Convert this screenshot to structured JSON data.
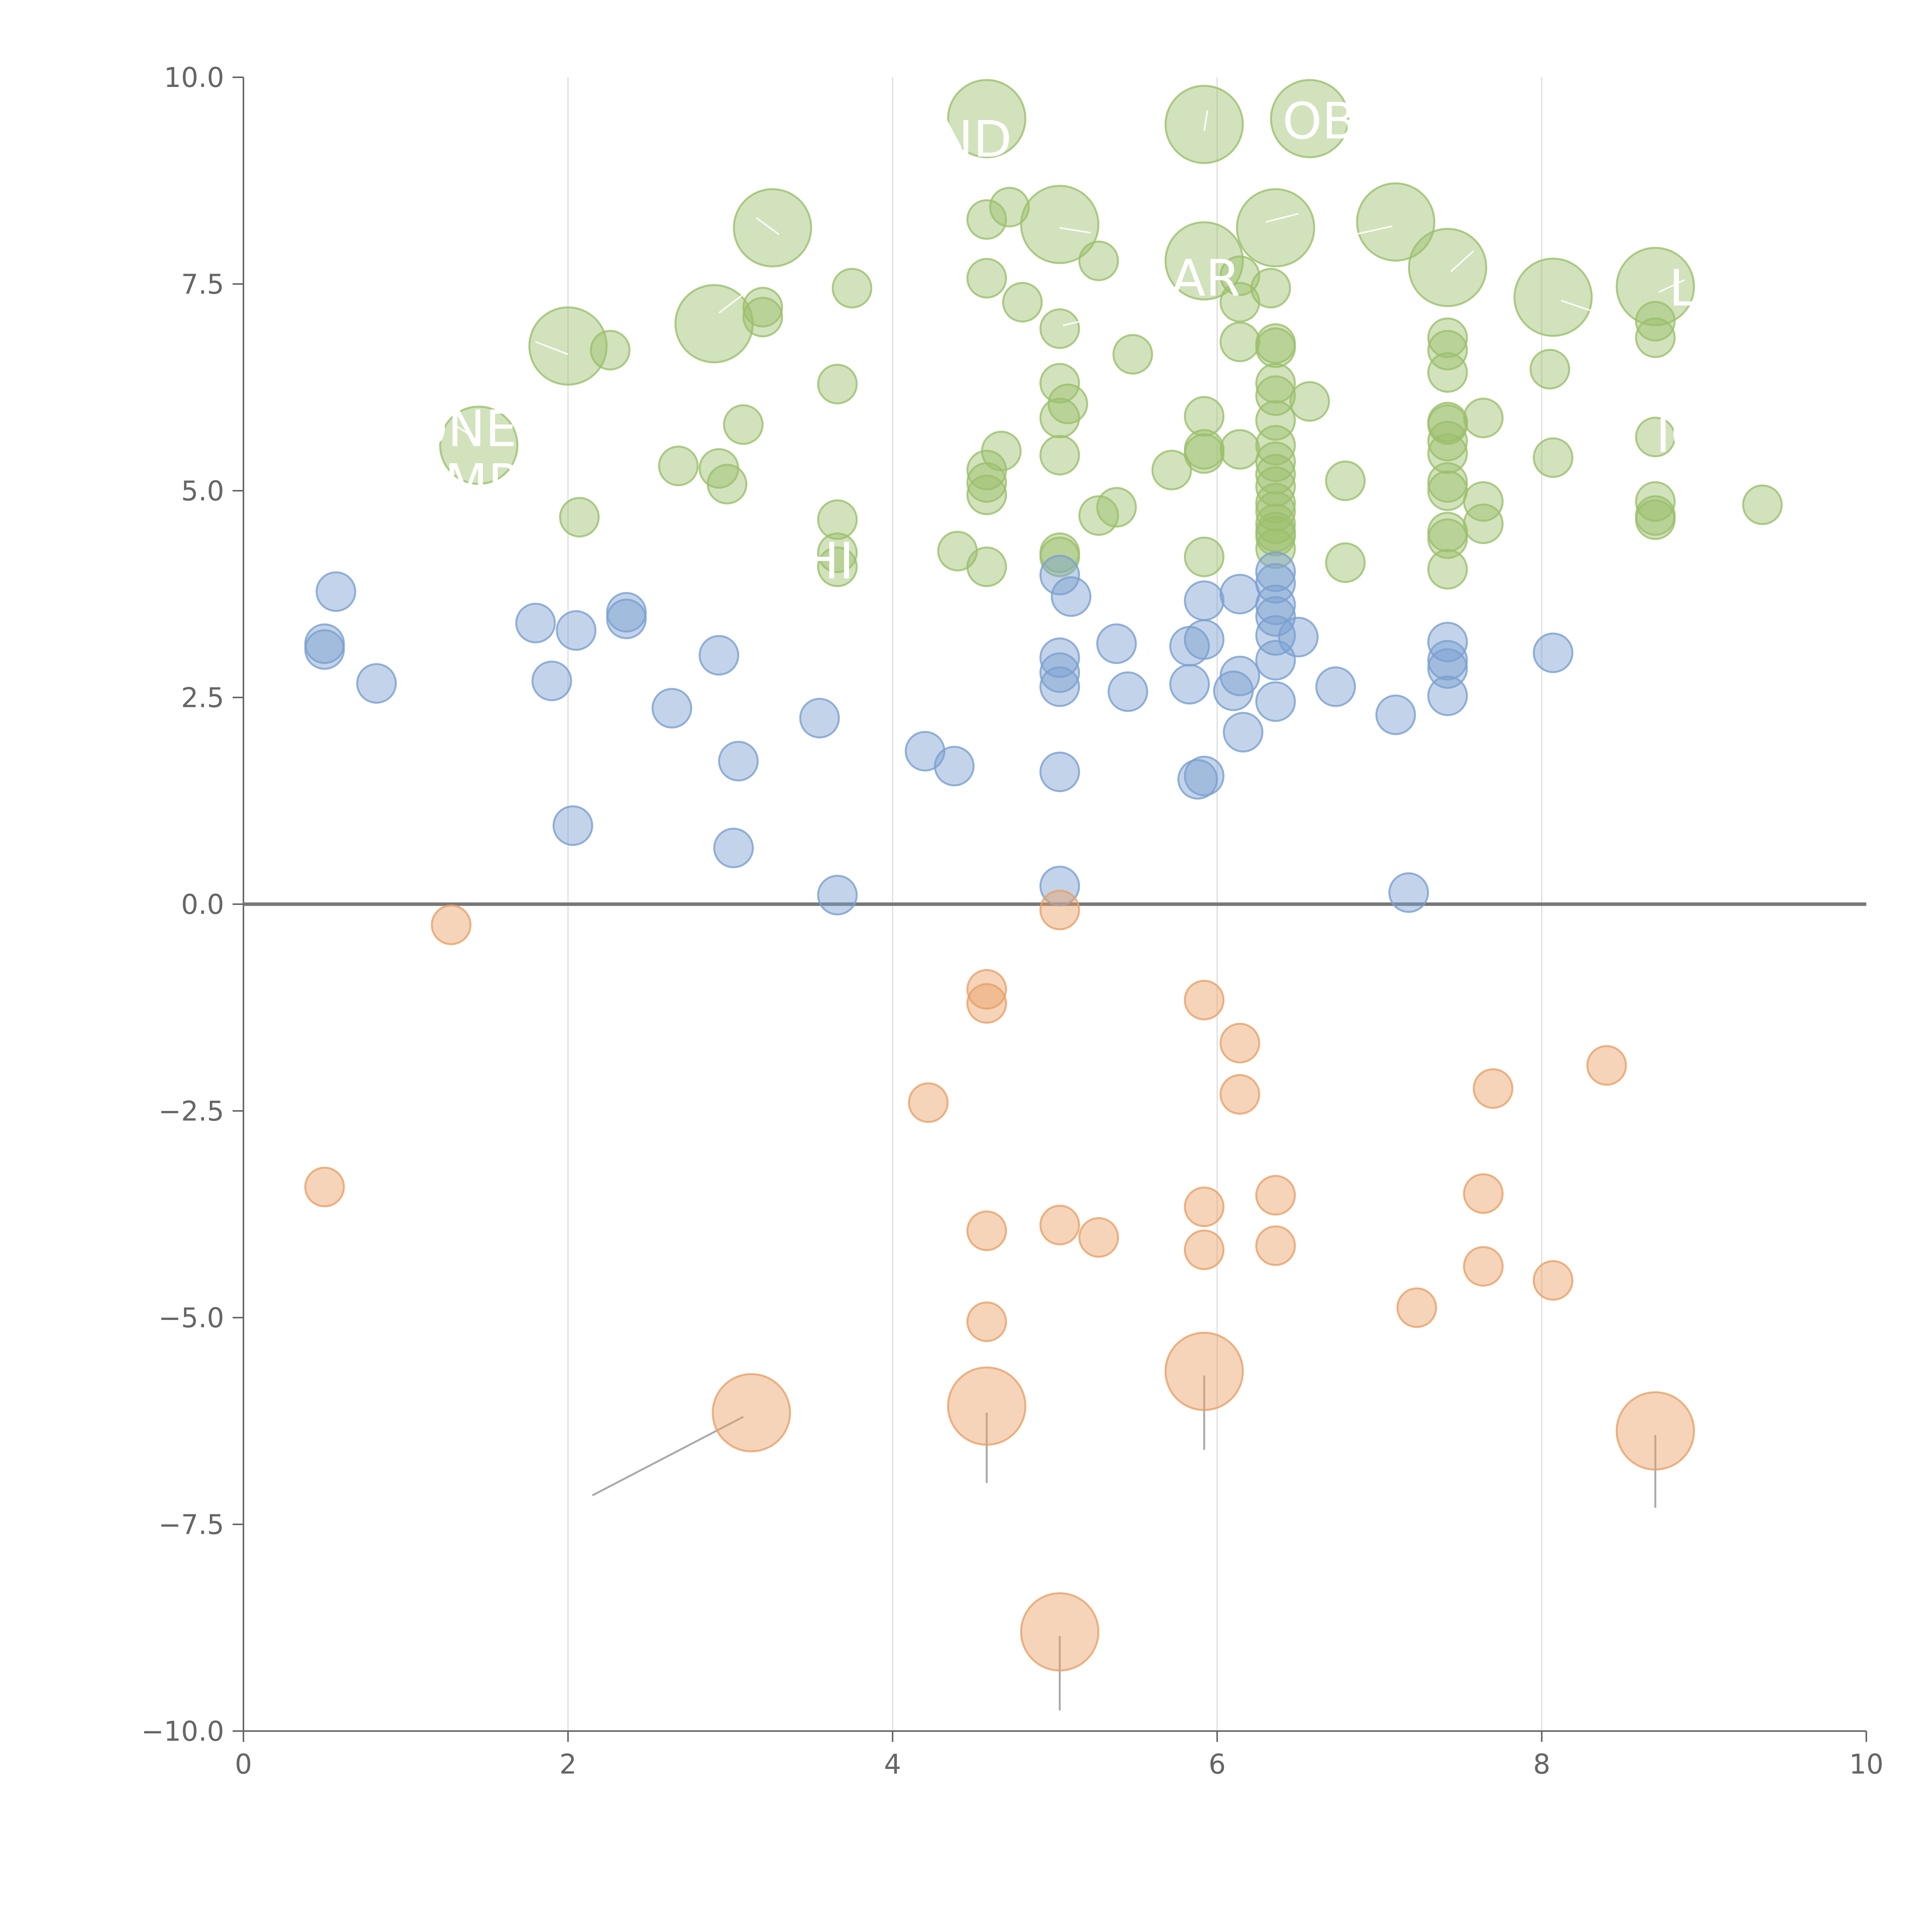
{
  "chart_data": {
    "type": "scatter",
    "title": "",
    "xlabel": "",
    "ylabel": "",
    "xlim": [
      0,
      10
    ],
    "ylim": [
      -10,
      10
    ],
    "x_ticks": [
      "0",
      "2",
      "4",
      "6",
      "8",
      "10"
    ],
    "y_ticks": [
      "10.0",
      "7.5",
      "5.0",
      "2.5",
      "0.0",
      "−2.5",
      "−5.0",
      "−7.5",
      "−10.0"
    ],
    "x_tick_values": [
      0,
      2,
      4,
      6,
      8,
      10
    ],
    "y_tick_values": [
      10,
      7.5,
      5,
      2.5,
      0,
      -2.5,
      -5,
      -7.5,
      -10
    ],
    "grid": "vertical",
    "zero_line": true,
    "colors": {
      "green": "#9bbf6b",
      "blue": "#7b9fd0",
      "orange": "#e8a066"
    },
    "series": [
      {
        "color": "#9bbf6b",
        "points": [
          [
            4.58,
            9.5,
            3
          ],
          [
            5.92,
            9.43,
            3
          ],
          [
            6.57,
            9.5,
            3
          ],
          [
            3.26,
            8.18,
            3
          ],
          [
            4.58,
            8.28,
            1
          ],
          [
            4.72,
            8.43,
            1
          ],
          [
            5.03,
            8.22,
            3
          ],
          [
            5.27,
            7.78,
            1
          ],
          [
            5.92,
            7.78,
            3
          ],
          [
            6.36,
            8.18,
            3
          ],
          [
            7.1,
            8.25,
            3
          ],
          [
            7.42,
            7.7,
            3
          ],
          [
            8.07,
            7.34,
            3
          ],
          [
            8.7,
            7.47,
            3
          ],
          [
            4.58,
            7.57,
            1
          ],
          [
            4.8,
            7.28,
            1
          ],
          [
            3.75,
            7.45,
            1
          ],
          [
            3.2,
            7.22,
            1
          ],
          [
            3.2,
            7.1,
            1
          ],
          [
            2.9,
            7.02,
            3
          ],
          [
            2.0,
            6.75,
            3
          ],
          [
            2.26,
            6.7,
            1
          ],
          [
            5.03,
            6.96,
            1
          ],
          [
            5.48,
            6.65,
            1
          ],
          [
            6.14,
            7.28,
            1
          ],
          [
            6.14,
            7.6,
            1
          ],
          [
            6.33,
            7.45,
            1
          ],
          [
            6.14,
            6.8,
            1
          ],
          [
            6.36,
            6.73,
            1
          ],
          [
            6.36,
            6.78,
            1
          ],
          [
            7.42,
            6.85,
            1
          ],
          [
            7.42,
            6.7,
            1
          ],
          [
            7.42,
            6.43,
            1
          ],
          [
            8.7,
            7.05,
            1
          ],
          [
            8.7,
            6.85,
            1
          ],
          [
            8.05,
            6.47,
            1
          ],
          [
            3.66,
            6.29,
            1
          ],
          [
            5.03,
            6.3,
            1
          ],
          [
            5.08,
            6.05,
            1
          ],
          [
            5.03,
            5.88,
            1
          ],
          [
            5.92,
            5.9,
            1
          ],
          [
            6.36,
            6.3,
            1
          ],
          [
            6.36,
            6.15,
            1
          ],
          [
            6.57,
            6.08,
            1
          ],
          [
            6.36,
            5.85,
            1
          ],
          [
            7.42,
            5.83,
            1
          ],
          [
            7.42,
            5.8,
            1
          ],
          [
            7.64,
            5.88,
            1
          ],
          [
            8.7,
            5.65,
            1
          ],
          [
            3.08,
            5.8,
            1
          ],
          [
            1.45,
            5.55,
            3
          ],
          [
            2.68,
            5.3,
            1
          ],
          [
            2.93,
            5.27,
            1
          ],
          [
            2.98,
            5.08,
            1
          ],
          [
            2.07,
            4.68,
            1
          ],
          [
            4.67,
            5.48,
            1
          ],
          [
            4.58,
            5.25,
            1
          ],
          [
            4.58,
            5.1,
            1
          ],
          [
            4.58,
            4.95,
            1
          ],
          [
            5.03,
            5.43,
            1
          ],
          [
            5.72,
            5.25,
            1
          ],
          [
            5.92,
            5.5,
            1
          ],
          [
            5.92,
            5.45,
            1
          ],
          [
            6.14,
            5.5,
            1
          ],
          [
            6.36,
            5.55,
            1
          ],
          [
            6.36,
            5.35,
            1
          ],
          [
            6.36,
            5.2,
            1
          ],
          [
            6.36,
            5.05,
            1
          ],
          [
            6.36,
            4.85,
            1
          ],
          [
            6.36,
            4.75,
            1
          ],
          [
            6.36,
            4.6,
            1
          ],
          [
            6.36,
            4.5,
            1
          ],
          [
            6.36,
            4.45,
            1
          ],
          [
            6.36,
            4.3,
            1
          ],
          [
            6.79,
            5.12,
            1
          ],
          [
            7.42,
            5.6,
            1
          ],
          [
            7.42,
            5.45,
            1
          ],
          [
            7.42,
            5.1,
            1
          ],
          [
            7.42,
            5.0,
            1
          ],
          [
            7.42,
            4.5,
            1
          ],
          [
            7.42,
            4.42,
            1
          ],
          [
            7.64,
            4.87,
            1
          ],
          [
            7.64,
            4.6,
            1
          ],
          [
            8.07,
            5.4,
            1
          ],
          [
            8.7,
            4.87,
            1
          ],
          [
            8.7,
            4.7,
            1
          ],
          [
            8.7,
            4.65,
            1
          ],
          [
            9.36,
            4.83,
            1
          ],
          [
            5.27,
            4.7,
            1
          ],
          [
            5.38,
            4.8,
            1
          ],
          [
            3.66,
            4.65,
            1
          ],
          [
            3.66,
            4.25,
            1
          ],
          [
            3.66,
            4.08,
            1
          ],
          [
            4.4,
            4.27,
            1
          ],
          [
            4.58,
            4.08,
            1
          ],
          [
            5.03,
            4.25,
            1
          ],
          [
            5.03,
            4.2,
            1
          ],
          [
            5.92,
            4.2,
            1
          ],
          [
            6.79,
            4.13,
            1
          ],
          [
            7.42,
            4.05,
            1
          ]
        ]
      },
      {
        "color": "#7b9fd0",
        "points": [
          [
            0.57,
            3.78,
            1
          ],
          [
            0.5,
            3.15,
            1
          ],
          [
            0.5,
            3.08,
            1
          ],
          [
            0.82,
            2.67,
            1
          ],
          [
            1.8,
            3.4,
            1
          ],
          [
            1.9,
            2.7,
            1
          ],
          [
            2.05,
            3.31,
            1
          ],
          [
            2.36,
            3.53,
            1
          ],
          [
            2.36,
            3.45,
            1
          ],
          [
            2.93,
            3.01,
            1
          ],
          [
            2.64,
            2.37,
            1
          ],
          [
            3.05,
            1.73,
            1
          ],
          [
            2.03,
            0.95,
            1
          ],
          [
            3.02,
            0.68,
            1
          ],
          [
            3.55,
            2.25,
            1
          ],
          [
            3.66,
            0.11,
            1
          ],
          [
            4.2,
            1.85,
            1
          ],
          [
            4.38,
            1.67,
            1
          ],
          [
            5.03,
            3.98,
            1
          ],
          [
            5.1,
            3.72,
            1
          ],
          [
            5.03,
            2.98,
            1
          ],
          [
            5.03,
            2.8,
            1
          ],
          [
            5.03,
            2.63,
            1
          ],
          [
            5.03,
            1.6,
            1
          ],
          [
            5.03,
            0.22,
            1
          ],
          [
            5.38,
            3.15,
            1
          ],
          [
            5.45,
            2.57,
            1
          ],
          [
            5.92,
            3.67,
            1
          ],
          [
            5.83,
            3.12,
            1
          ],
          [
            5.92,
            3.2,
            1
          ],
          [
            5.83,
            2.66,
            1
          ],
          [
            5.88,
            1.51,
            1
          ],
          [
            5.92,
            1.55,
            1
          ],
          [
            6.14,
            3.75,
            1
          ],
          [
            6.1,
            2.58,
            1
          ],
          [
            6.14,
            2.76,
            1
          ],
          [
            6.16,
            2.08,
            1
          ],
          [
            6.36,
            4.02,
            1
          ],
          [
            6.36,
            3.88,
            1
          ],
          [
            6.36,
            3.62,
            1
          ],
          [
            6.36,
            3.48,
            1
          ],
          [
            6.36,
            3.25,
            1
          ],
          [
            6.5,
            3.23,
            1
          ],
          [
            6.36,
            2.95,
            1
          ],
          [
            6.36,
            2.45,
            1
          ],
          [
            6.73,
            2.63,
            1
          ],
          [
            7.1,
            2.29,
            1
          ],
          [
            7.18,
            0.14,
            1
          ],
          [
            7.42,
            3.17,
            1
          ],
          [
            7.42,
            2.95,
            1
          ],
          [
            7.42,
            2.85,
            1
          ],
          [
            7.42,
            2.52,
            1
          ],
          [
            8.07,
            3.04,
            1
          ]
        ]
      },
      {
        "color": "#e8a066",
        "points": [
          [
            1.28,
            -0.25,
            1
          ],
          [
            5.03,
            -0.07,
            1
          ],
          [
            4.58,
            -1.03,
            1
          ],
          [
            4.58,
            -1.2,
            1
          ],
          [
            5.92,
            -1.16,
            1
          ],
          [
            6.14,
            -1.68,
            1
          ],
          [
            6.14,
            -2.3,
            1
          ],
          [
            4.22,
            -2.4,
            1
          ],
          [
            8.4,
            -1.95,
            1
          ],
          [
            7.7,
            -2.23,
            1
          ],
          [
            0.5,
            -3.42,
            1
          ],
          [
            4.58,
            -3.95,
            1
          ],
          [
            5.03,
            -3.88,
            1
          ],
          [
            5.27,
            -4.03,
            1
          ],
          [
            5.92,
            -3.66,
            1
          ],
          [
            5.92,
            -4.18,
            1
          ],
          [
            6.36,
            -3.52,
            1
          ],
          [
            6.36,
            -4.13,
            1
          ],
          [
            7.64,
            -3.5,
            1
          ],
          [
            7.64,
            -4.38,
            1
          ],
          [
            8.07,
            -4.55,
            1
          ],
          [
            7.23,
            -4.88,
            1
          ],
          [
            4.58,
            -5.05,
            1
          ],
          [
            3.13,
            -6.15,
            3
          ],
          [
            4.58,
            -6.07,
            3
          ],
          [
            5.92,
            -5.65,
            3
          ],
          [
            8.7,
            -6.37,
            3
          ],
          [
            5.03,
            -8.8,
            3
          ]
        ]
      }
    ],
    "labels": [
      {
        "text": "ND",
        "x": 4.5,
        "y": 9.25
      },
      {
        "text": "OB",
        "x": 6.63,
        "y": 9.47
      },
      {
        "text": "AR",
        "x": 5.93,
        "y": 7.57
      },
      {
        "text": "L",
        "x": 8.87,
        "y": 7.45
      },
      {
        "text": "ONE",
        "x": 1.35,
        "y": 5.75
      },
      {
        "text": "MR",
        "x": 1.48,
        "y": 5.1
      },
      {
        "text": "IO",
        "x": 8.87,
        "y": 5.68
      },
      {
        "text": "HI",
        "x": 3.6,
        "y": 4.15
      }
    ],
    "leaders": [
      [
        2.15,
        -7.15,
        3.08,
        -6.2
      ],
      [
        4.58,
        -7.0,
        4.58,
        -6.15
      ],
      [
        5.92,
        -6.6,
        5.92,
        -5.7
      ],
      [
        8.7,
        -7.3,
        8.7,
        -6.42
      ],
      [
        5.03,
        -9.75,
        5.03,
        -8.85
      ]
    ],
    "light_leaders": [
      [
        2.93,
        7.15,
        3.13,
        7.45
      ],
      [
        3.16,
        8.3,
        3.3,
        8.1
      ],
      [
        5.03,
        8.18,
        5.22,
        8.12
      ],
      [
        5.92,
        9.35,
        5.94,
        9.6
      ],
      [
        6.3,
        8.25,
        6.5,
        8.35
      ],
      [
        7.08,
        8.2,
        6.62,
        8.0
      ],
      [
        7.44,
        7.65,
        7.58,
        7.9
      ],
      [
        8.12,
        7.3,
        8.3,
        7.18
      ],
      [
        8.72,
        7.4,
        8.88,
        7.55
      ],
      [
        1.8,
        6.8,
        2.0,
        6.65
      ],
      [
        1.45,
        5.6,
        1.3,
        5.8
      ],
      [
        5.27,
        7.1,
        5.05,
        7.0
      ]
    ]
  }
}
